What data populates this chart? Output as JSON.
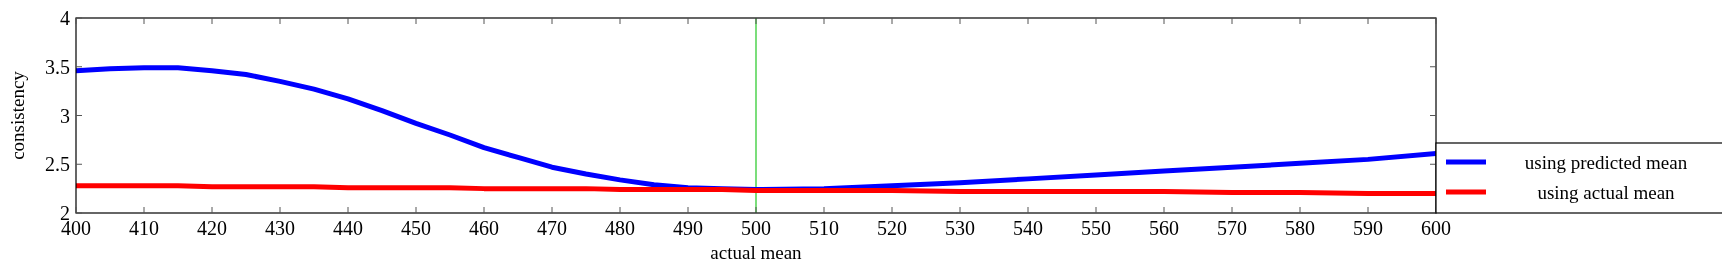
{
  "chart_data": {
    "type": "line",
    "xlabel": "actual mean",
    "ylabel": "consistency",
    "xlim": [
      400,
      600
    ],
    "xticks": [
      400,
      410,
      420,
      430,
      440,
      450,
      460,
      470,
      480,
      490,
      500,
      510,
      520,
      530,
      540,
      550,
      560,
      570,
      580,
      590,
      600
    ],
    "ylim": [
      2,
      4
    ],
    "yticks": [
      2,
      2.5,
      3,
      3.5,
      4
    ],
    "x": [
      400,
      405,
      410,
      415,
      420,
      425,
      430,
      435,
      440,
      445,
      450,
      455,
      460,
      465,
      470,
      475,
      480,
      485,
      490,
      495,
      500,
      510,
      520,
      530,
      540,
      550,
      560,
      570,
      580,
      590,
      600
    ],
    "series": [
      {
        "name": "using predicted mean",
        "color": "#0000ff",
        "values": [
          3.46,
          3.48,
          3.49,
          3.49,
          3.46,
          3.42,
          3.35,
          3.27,
          3.17,
          3.05,
          2.92,
          2.8,
          2.67,
          2.57,
          2.47,
          2.4,
          2.34,
          2.29,
          2.26,
          2.25,
          2.24,
          2.25,
          2.28,
          2.31,
          2.35,
          2.39,
          2.43,
          2.47,
          2.51,
          2.55,
          2.61
        ]
      },
      {
        "name": "using actual mean",
        "color": "#ff0000",
        "values": [
          2.28,
          2.28,
          2.28,
          2.28,
          2.27,
          2.27,
          2.27,
          2.27,
          2.26,
          2.26,
          2.26,
          2.26,
          2.25,
          2.25,
          2.25,
          2.25,
          2.24,
          2.24,
          2.24,
          2.24,
          2.23,
          2.23,
          2.23,
          2.22,
          2.22,
          2.22,
          2.22,
          2.21,
          2.21,
          2.2,
          2.2
        ]
      }
    ],
    "ref_lines": [
      {
        "axis": "x",
        "value": 500,
        "color": "#33cc33"
      }
    ],
    "legend": "right",
    "grid": false,
    "marker": "none",
    "line_style": "solid"
  }
}
